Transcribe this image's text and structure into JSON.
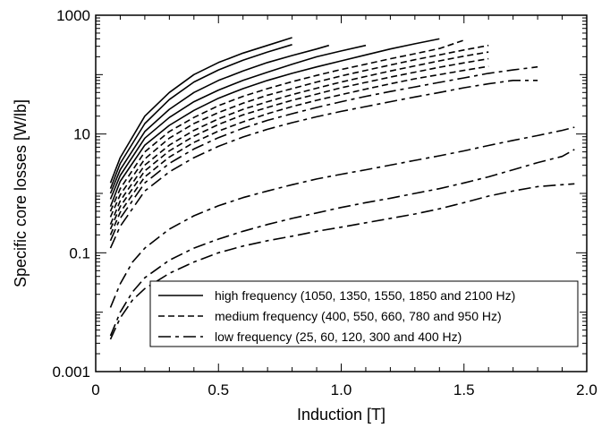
{
  "chart_data": {
    "type": "line",
    "title": "",
    "xlabel": "Induction [T]",
    "ylabel": "Specific core losses [W/lb]",
    "xlim": [
      0,
      2.0
    ],
    "ylim": [
      0.001,
      1000
    ],
    "yscale": "log",
    "grid": false,
    "legend_position": "bottom-right",
    "x_ticks": [
      "0",
      "0.5",
      "1.0",
      "1.5",
      "2.0"
    ],
    "y_ticks": [
      "0.001",
      "0.1",
      "10",
      "1000"
    ],
    "legend": [
      {
        "label": "high frequency (1050, 1350, 1550, 1850 and 2100 Hz)",
        "style": "solid"
      },
      {
        "label": "medium frequency (400, 550, 660, 780 and 950 Hz)",
        "style": "dashed"
      },
      {
        "label": "low frequency (25, 60, 120, 300 and 400 Hz)",
        "style": "dashdot"
      }
    ],
    "series": [
      {
        "group": "high",
        "style": "solid",
        "x": [
          0.06,
          0.1,
          0.2,
          0.3,
          0.4,
          0.5,
          0.6,
          0.7,
          0.8
        ],
        "y": [
          1.5,
          4.0,
          20,
          50,
          100,
          160,
          230,
          310,
          420
        ]
      },
      {
        "group": "high",
        "style": "solid",
        "x": [
          0.06,
          0.1,
          0.2,
          0.3,
          0.4,
          0.5,
          0.6,
          0.7,
          0.8
        ],
        "y": [
          1.2,
          3.2,
          15,
          38,
          75,
          120,
          175,
          240,
          320
        ]
      },
      {
        "group": "high",
        "style": "solid",
        "x": [
          0.06,
          0.1,
          0.2,
          0.3,
          0.4,
          0.5,
          0.6,
          0.7,
          0.8,
          0.9,
          0.95
        ],
        "y": [
          1.0,
          2.5,
          11,
          26,
          50,
          80,
          115,
          160,
          210,
          270,
          310
        ]
      },
      {
        "group": "high",
        "style": "solid",
        "x": [
          0.06,
          0.1,
          0.2,
          0.3,
          0.4,
          0.5,
          0.6,
          0.7,
          0.8,
          0.9,
          1.0,
          1.1
        ],
        "y": [
          0.8,
          2.0,
          8.5,
          19,
          35,
          55,
          80,
          110,
          150,
          200,
          250,
          310
        ]
      },
      {
        "group": "high",
        "style": "solid",
        "x": [
          0.06,
          0.1,
          0.2,
          0.3,
          0.4,
          0.5,
          0.6,
          0.7,
          0.8,
          0.9,
          1.0,
          1.1,
          1.2,
          1.3,
          1.4
        ],
        "y": [
          0.6,
          1.6,
          6.5,
          14,
          25,
          40,
          58,
          80,
          105,
          135,
          170,
          215,
          270,
          330,
          400
        ]
      },
      {
        "group": "medium",
        "style": "dashed",
        "x": [
          0.06,
          0.1,
          0.2,
          0.3,
          0.4,
          0.5,
          0.6,
          0.7,
          0.8,
          0.9,
          1.0,
          1.1,
          1.2,
          1.3,
          1.4,
          1.5
        ],
        "y": [
          0.5,
          1.2,
          5.0,
          11,
          19,
          30,
          43,
          58,
          76,
          97,
          122,
          150,
          185,
          225,
          275,
          380
        ]
      },
      {
        "group": "medium",
        "style": "dashed",
        "x": [
          0.06,
          0.1,
          0.2,
          0.3,
          0.4,
          0.5,
          0.6,
          0.7,
          0.8,
          0.9,
          1.0,
          1.1,
          1.2,
          1.3,
          1.4,
          1.5,
          1.6
        ],
        "y": [
          0.4,
          0.95,
          3.8,
          8.5,
          15,
          23,
          33,
          45,
          58,
          75,
          95,
          118,
          145,
          178,
          215,
          260,
          310
        ]
      },
      {
        "group": "medium",
        "style": "dashed",
        "x": [
          0.06,
          0.1,
          0.2,
          0.3,
          0.4,
          0.5,
          0.6,
          0.7,
          0.8,
          0.9,
          1.0,
          1.1,
          1.2,
          1.3,
          1.4,
          1.5,
          1.6
        ],
        "y": [
          0.3,
          0.75,
          3.0,
          6.5,
          11.5,
          18,
          26,
          35,
          46,
          59,
          75,
          93,
          115,
          140,
          170,
          205,
          240
        ]
      },
      {
        "group": "medium",
        "style": "dashed",
        "x": [
          0.06,
          0.1,
          0.2,
          0.3,
          0.4,
          0.5,
          0.6,
          0.7,
          0.8,
          0.9,
          1.0,
          1.1,
          1.2,
          1.3,
          1.4,
          1.5,
          1.6
        ],
        "y": [
          0.25,
          0.6,
          2.4,
          5.2,
          9.2,
          14.5,
          21,
          28,
          37,
          47,
          60,
          74,
          91,
          110,
          133,
          158,
          185
        ]
      },
      {
        "group": "medium",
        "style": "dashed",
        "x": [
          0.06,
          0.1,
          0.2,
          0.3,
          0.4,
          0.5,
          0.6,
          0.7,
          0.8,
          0.9,
          1.0,
          1.1,
          1.2,
          1.3,
          1.4,
          1.5,
          1.6
        ],
        "y": [
          0.2,
          0.48,
          1.9,
          4.1,
          7.2,
          11.2,
          16,
          22,
          29,
          37,
          46,
          57,
          70,
          85,
          100,
          118,
          138
        ]
      },
      {
        "group": "low",
        "style": "dashdot",
        "x": [
          0.06,
          0.1,
          0.2,
          0.3,
          0.4,
          0.5,
          0.6,
          0.7,
          0.8,
          0.9,
          1.0,
          1.1,
          1.2,
          1.3,
          1.4,
          1.5,
          1.6,
          1.7,
          1.8
        ],
        "y": [
          0.16,
          0.38,
          1.5,
          3.2,
          5.6,
          8.7,
          12.5,
          17,
          22,
          28,
          35,
          43,
          52,
          62,
          74,
          88,
          105,
          120,
          135
        ]
      },
      {
        "group": "low",
        "style": "dashdot",
        "x": [
          0.06,
          0.1,
          0.2,
          0.3,
          0.4,
          0.5,
          0.6,
          0.7,
          0.8,
          0.9,
          1.0,
          1.1,
          1.2,
          1.3,
          1.4,
          1.5,
          1.6,
          1.7,
          1.8
        ],
        "y": [
          0.12,
          0.28,
          1.1,
          2.3,
          4.0,
          6.2,
          8.9,
          12,
          15.5,
          19.5,
          24,
          29,
          35,
          42,
          50,
          60,
          70,
          80,
          80
        ]
      },
      {
        "group": "low",
        "style": "dashdot",
        "x": [
          0.06,
          0.1,
          0.15,
          0.2,
          0.3,
          0.4,
          0.5,
          0.6,
          0.7,
          0.8,
          0.9,
          1.0,
          1.1,
          1.2,
          1.3,
          1.4,
          1.5,
          1.6,
          1.7,
          1.8,
          1.9,
          1.95
        ],
        "y": [
          0.012,
          0.03,
          0.07,
          0.12,
          0.25,
          0.42,
          0.62,
          0.85,
          1.1,
          1.4,
          1.75,
          2.1,
          2.5,
          3.0,
          3.6,
          4.3,
          5.2,
          6.4,
          7.8,
          9.4,
          11.5,
          13
        ]
      },
      {
        "group": "low",
        "style": "dashdot",
        "x": [
          0.06,
          0.1,
          0.15,
          0.2,
          0.3,
          0.4,
          0.5,
          0.6,
          0.7,
          0.8,
          0.9,
          1.0,
          1.1,
          1.2,
          1.3,
          1.4,
          1.5,
          1.6,
          1.7,
          1.8,
          1.9,
          1.95
        ],
        "y": [
          0.004,
          0.01,
          0.022,
          0.038,
          0.075,
          0.12,
          0.17,
          0.23,
          0.3,
          0.38,
          0.47,
          0.58,
          0.7,
          0.83,
          1.0,
          1.2,
          1.5,
          1.9,
          2.5,
          3.3,
          4.2,
          5.5
        ]
      },
      {
        "group": "low",
        "style": "dashdot",
        "x": [
          0.06,
          0.1,
          0.15,
          0.2,
          0.3,
          0.4,
          0.5,
          0.6,
          0.7,
          0.8,
          0.9,
          1.0,
          1.1,
          1.2,
          1.3,
          1.4,
          1.5,
          1.6,
          1.7,
          1.8,
          1.9,
          1.95
        ],
        "y": [
          0.0035,
          0.008,
          0.016,
          0.025,
          0.045,
          0.07,
          0.1,
          0.13,
          0.16,
          0.19,
          0.23,
          0.27,
          0.32,
          0.38,
          0.45,
          0.55,
          0.7,
          0.9,
          1.1,
          1.3,
          1.4,
          1.45
        ]
      }
    ]
  }
}
